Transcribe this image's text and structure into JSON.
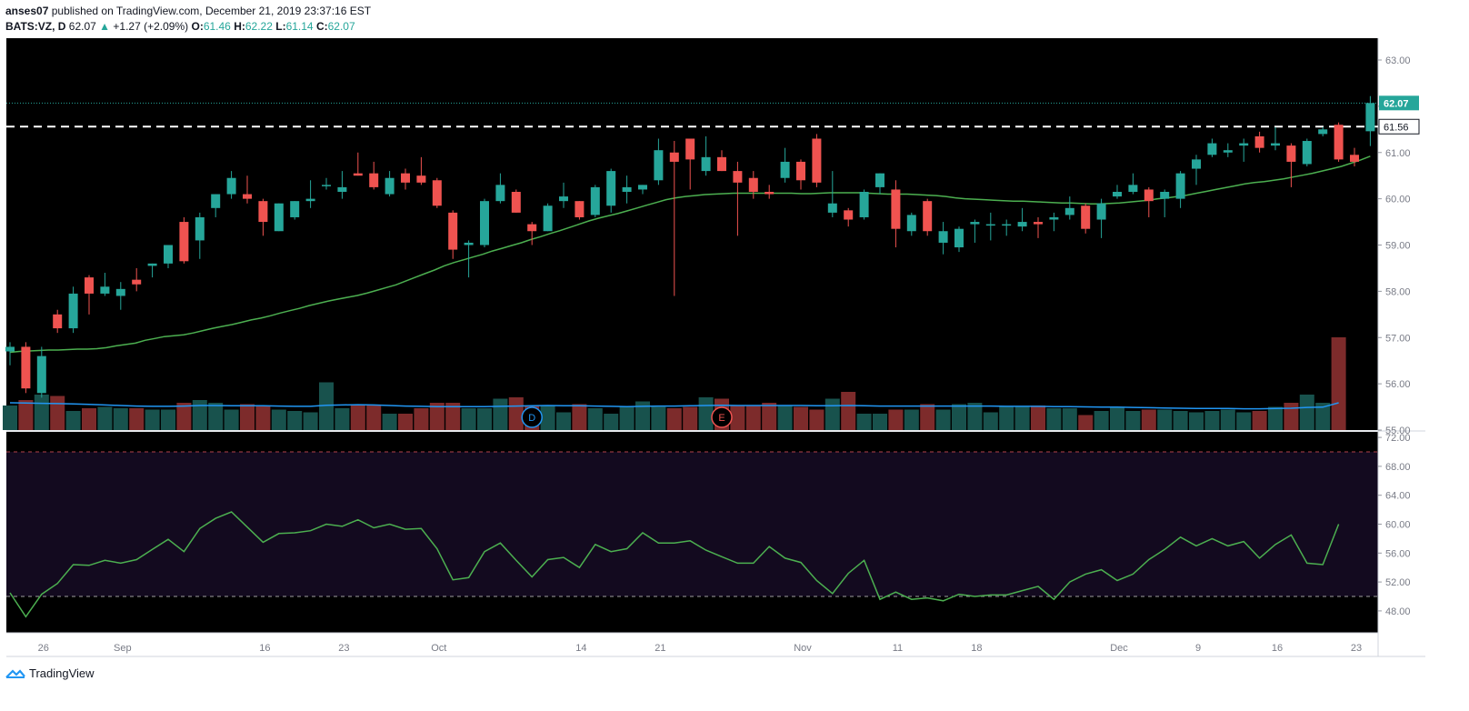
{
  "header": {
    "line1_author": "anses07",
    "line1_text": "published on TradingView.com, December 21, 2019 23:37:16 EST",
    "symbol": "BATS:VZ, D",
    "last": "62.07",
    "change": "+1.27 (+2.09%)",
    "o_label": "O:",
    "o_value": "61.46",
    "h_label": "H:",
    "h_value": "62.22",
    "l_label": "L:",
    "l_value": "61.14",
    "c_label": "C:",
    "c_value": "62.07"
  },
  "footer": {
    "brand": "TradingView"
  },
  "colors": {
    "up": "#26a69a",
    "down": "#ef5350",
    "ma": "#4caf50",
    "vol_ma": "#2196f3",
    "rsi_band": "#130a1f"
  },
  "chart_data": [
    {
      "type": "candlestick",
      "yaxis_ticks": [
        "63.00",
        "62.00",
        "61.00",
        "60.00",
        "59.00",
        "58.00",
        "57.00",
        "56.00",
        "55.00"
      ],
      "ylim": [
        55,
        63
      ],
      "price_labels": {
        "last": "62.07",
        "level": "61.56"
      },
      "x_ticks": [
        {
          "label": "26",
          "i": 2
        },
        {
          "label": "Sep",
          "i": 7
        },
        {
          "label": "16",
          "i": 16
        },
        {
          "label": "23",
          "i": 21
        },
        {
          "label": "Oct",
          "i": 27
        },
        {
          "label": "14",
          "i": 36
        },
        {
          "label": "21",
          "i": 41
        },
        {
          "label": "Nov",
          "i": 50
        },
        {
          "label": "11",
          "i": 56
        },
        {
          "label": "18",
          "i": 61
        },
        {
          "label": "Dec",
          "i": 70
        },
        {
          "label": "9",
          "i": 75
        },
        {
          "label": "16",
          "i": 80
        },
        {
          "label": "23",
          "i": 85
        }
      ],
      "events": [
        {
          "label": "D",
          "i": 33
        },
        {
          "label": "E",
          "i": 45
        }
      ],
      "candles": [
        {
          "o": 56.7,
          "h": 56.9,
          "l": 56.4,
          "c": 56.8
        },
        {
          "o": 56.8,
          "h": 56.9,
          "l": 55.8,
          "c": 55.9
        },
        {
          "o": 55.8,
          "h": 56.8,
          "l": 55.7,
          "c": 56.6
        },
        {
          "o": 57.5,
          "h": 57.6,
          "l": 57.1,
          "c": 57.2
        },
        {
          "o": 57.2,
          "h": 58.1,
          "l": 57.1,
          "c": 57.95
        },
        {
          "o": 58.3,
          "h": 58.35,
          "l": 57.5,
          "c": 57.95
        },
        {
          "o": 57.95,
          "h": 58.4,
          "l": 57.9,
          "c": 58.1
        },
        {
          "o": 57.9,
          "h": 58.2,
          "l": 57.6,
          "c": 58.05
        },
        {
          "o": 58.25,
          "h": 58.5,
          "l": 58.0,
          "c": 58.15
        },
        {
          "o": 58.55,
          "h": 58.6,
          "l": 58.3,
          "c": 58.6
        },
        {
          "o": 58.6,
          "h": 59.0,
          "l": 58.5,
          "c": 59.0
        },
        {
          "o": 59.5,
          "h": 59.6,
          "l": 58.6,
          "c": 58.65
        },
        {
          "o": 59.1,
          "h": 59.7,
          "l": 58.7,
          "c": 59.6
        },
        {
          "o": 59.8,
          "h": 60.1,
          "l": 59.6,
          "c": 60.1
        },
        {
          "o": 60.1,
          "h": 60.6,
          "l": 60.0,
          "c": 60.45
        },
        {
          "o": 60.1,
          "h": 60.5,
          "l": 59.9,
          "c": 60.0
        },
        {
          "o": 59.95,
          "h": 60.0,
          "l": 59.2,
          "c": 59.5
        },
        {
          "o": 59.3,
          "h": 59.9,
          "l": 59.3,
          "c": 59.9
        },
        {
          "o": 59.6,
          "h": 59.95,
          "l": 59.55,
          "c": 59.95
        },
        {
          "o": 59.95,
          "h": 60.4,
          "l": 59.8,
          "c": 60.0
        },
        {
          "o": 60.3,
          "h": 60.45,
          "l": 60.2,
          "c": 60.3
        },
        {
          "o": 60.15,
          "h": 60.6,
          "l": 60.0,
          "c": 60.25
        },
        {
          "o": 60.55,
          "h": 61.0,
          "l": 60.5,
          "c": 60.5
        },
        {
          "o": 60.55,
          "h": 60.8,
          "l": 60.2,
          "c": 60.25
        },
        {
          "o": 60.1,
          "h": 60.6,
          "l": 60.05,
          "c": 60.45
        },
        {
          "o": 60.55,
          "h": 60.65,
          "l": 60.2,
          "c": 60.35
        },
        {
          "o": 60.5,
          "h": 60.9,
          "l": 60.3,
          "c": 60.35
        },
        {
          "o": 60.4,
          "h": 60.45,
          "l": 59.8,
          "c": 59.85
        },
        {
          "o": 59.7,
          "h": 59.75,
          "l": 58.7,
          "c": 58.9
        },
        {
          "o": 59.0,
          "h": 59.1,
          "l": 58.3,
          "c": 59.05
        },
        {
          "o": 59.0,
          "h": 60.0,
          "l": 58.95,
          "c": 59.95
        },
        {
          "o": 59.95,
          "h": 60.55,
          "l": 59.9,
          "c": 60.3
        },
        {
          "o": 60.15,
          "h": 60.2,
          "l": 59.7,
          "c": 59.7
        },
        {
          "o": 59.45,
          "h": 59.5,
          "l": 59.0,
          "c": 59.3
        },
        {
          "o": 59.3,
          "h": 59.9,
          "l": 59.3,
          "c": 59.85
        },
        {
          "o": 59.95,
          "h": 60.35,
          "l": 59.8,
          "c": 60.05
        },
        {
          "o": 59.95,
          "h": 59.95,
          "l": 59.55,
          "c": 59.6
        },
        {
          "o": 59.65,
          "h": 60.3,
          "l": 59.6,
          "c": 60.25
        },
        {
          "o": 59.85,
          "h": 60.65,
          "l": 59.7,
          "c": 60.6
        },
        {
          "o": 60.15,
          "h": 60.5,
          "l": 59.9,
          "c": 60.25
        },
        {
          "o": 60.2,
          "h": 60.3,
          "l": 60.1,
          "c": 60.3
        },
        {
          "o": 60.4,
          "h": 61.3,
          "l": 60.3,
          "c": 61.05
        },
        {
          "o": 61.0,
          "h": 61.25,
          "l": 57.9,
          "c": 60.8
        },
        {
          "o": 61.3,
          "h": 61.3,
          "l": 60.2,
          "c": 60.85
        },
        {
          "o": 60.6,
          "h": 61.35,
          "l": 60.5,
          "c": 60.9
        },
        {
          "o": 60.9,
          "h": 61.05,
          "l": 60.6,
          "c": 60.6
        },
        {
          "o": 60.6,
          "h": 60.8,
          "l": 59.2,
          "c": 60.35
        },
        {
          "o": 60.45,
          "h": 60.6,
          "l": 60.0,
          "c": 60.15
        },
        {
          "o": 60.15,
          "h": 60.3,
          "l": 60.0,
          "c": 60.1
        },
        {
          "o": 60.45,
          "h": 61.1,
          "l": 60.35,
          "c": 60.8
        },
        {
          "o": 60.8,
          "h": 60.85,
          "l": 60.2,
          "c": 60.4
        },
        {
          "o": 61.3,
          "h": 61.4,
          "l": 60.25,
          "c": 60.35
        },
        {
          "o": 59.7,
          "h": 60.6,
          "l": 59.6,
          "c": 59.9
        },
        {
          "o": 59.75,
          "h": 59.8,
          "l": 59.4,
          "c": 59.55
        },
        {
          "o": 59.6,
          "h": 60.2,
          "l": 59.55,
          "c": 60.15
        },
        {
          "o": 60.25,
          "h": 60.55,
          "l": 60.1,
          "c": 60.55
        },
        {
          "o": 60.2,
          "h": 60.4,
          "l": 58.95,
          "c": 59.35
        },
        {
          "o": 59.3,
          "h": 59.7,
          "l": 59.2,
          "c": 59.65
        },
        {
          "o": 59.95,
          "h": 60.0,
          "l": 59.2,
          "c": 59.3
        },
        {
          "o": 59.05,
          "h": 59.5,
          "l": 58.8,
          "c": 59.3
        },
        {
          "o": 58.95,
          "h": 59.4,
          "l": 58.85,
          "c": 59.35
        },
        {
          "o": 59.45,
          "h": 59.55,
          "l": 59.05,
          "c": 59.5
        },
        {
          "o": 59.45,
          "h": 59.7,
          "l": 59.1,
          "c": 59.45
        },
        {
          "o": 59.45,
          "h": 59.55,
          "l": 59.2,
          "c": 59.45
        },
        {
          "o": 59.4,
          "h": 59.8,
          "l": 59.3,
          "c": 59.5
        },
        {
          "o": 59.5,
          "h": 59.6,
          "l": 59.15,
          "c": 59.45
        },
        {
          "o": 59.55,
          "h": 59.7,
          "l": 59.3,
          "c": 59.6
        },
        {
          "o": 59.65,
          "h": 60.05,
          "l": 59.55,
          "c": 59.8
        },
        {
          "o": 59.85,
          "h": 59.9,
          "l": 59.25,
          "c": 59.35
        },
        {
          "o": 59.55,
          "h": 60.0,
          "l": 59.15,
          "c": 59.9
        },
        {
          "o": 60.05,
          "h": 60.3,
          "l": 60.0,
          "c": 60.15
        },
        {
          "o": 60.15,
          "h": 60.55,
          "l": 60.1,
          "c": 60.3
        },
        {
          "o": 60.2,
          "h": 60.25,
          "l": 59.6,
          "c": 59.95
        },
        {
          "o": 60.0,
          "h": 60.2,
          "l": 59.6,
          "c": 60.15
        },
        {
          "o": 60.0,
          "h": 60.6,
          "l": 59.8,
          "c": 60.55
        },
        {
          "o": 60.65,
          "h": 60.95,
          "l": 60.3,
          "c": 60.85
        },
        {
          "o": 60.95,
          "h": 61.3,
          "l": 60.9,
          "c": 61.2
        },
        {
          "o": 61.0,
          "h": 61.2,
          "l": 60.9,
          "c": 61.05
        },
        {
          "o": 61.15,
          "h": 61.3,
          "l": 60.8,
          "c": 61.2
        },
        {
          "o": 61.35,
          "h": 61.45,
          "l": 61.0,
          "c": 61.1
        },
        {
          "o": 61.15,
          "h": 61.55,
          "l": 61.05,
          "c": 61.2
        },
        {
          "o": 61.15,
          "h": 61.2,
          "l": 60.25,
          "c": 60.8
        },
        {
          "o": 60.75,
          "h": 61.3,
          "l": 60.7,
          "c": 61.25
        },
        {
          "o": 61.4,
          "h": 61.55,
          "l": 61.35,
          "c": 61.5
        },
        {
          "o": 61.6,
          "h": 61.65,
          "l": 60.8,
          "c": 60.85
        },
        {
          "o": 60.95,
          "h": 61.1,
          "l": 60.7,
          "c": 60.8
        },
        {
          "o": 61.46,
          "h": 62.22,
          "l": 61.14,
          "c": 62.07
        }
      ],
      "ma": [
        56.68,
        56.7,
        56.71,
        56.72,
        56.73,
        56.73,
        56.74,
        56.75,
        56.75,
        56.76,
        56.78,
        56.82,
        56.85,
        56.88,
        56.94,
        56.98,
        57.02,
        57.04,
        57.06,
        57.1,
        57.15,
        57.2,
        57.24,
        57.28,
        57.33,
        57.38,
        57.42,
        57.47,
        57.53,
        57.58,
        57.63,
        57.69,
        57.74,
        57.79,
        57.83,
        57.87,
        57.91,
        57.96,
        58.02,
        58.08,
        58.14,
        58.22,
        58.3,
        58.38,
        58.46,
        58.55,
        58.62,
        58.68,
        58.74,
        58.8,
        58.87,
        58.93,
        58.99,
        59.05,
        59.12,
        59.18,
        59.25,
        59.31,
        59.38,
        59.45,
        59.52,
        59.58,
        59.63,
        59.68,
        59.74,
        59.8,
        59.86,
        59.92,
        59.98,
        60.02,
        60.05,
        60.07,
        60.09,
        60.1,
        60.11,
        60.12,
        60.12,
        60.12,
        60.12,
        60.12,
        60.12,
        60.12,
        60.11,
        60.11,
        60.12,
        60.13,
        60.13,
        60.13,
        60.13,
        60.12,
        60.11,
        60.1,
        60.1,
        60.1,
        60.09,
        60.08,
        60.07,
        60.05,
        60.02,
        60.0,
        59.99,
        59.98,
        59.97,
        59.96,
        59.95,
        59.95,
        59.94,
        59.93,
        59.92,
        59.91,
        59.91,
        59.9,
        59.89,
        59.89,
        59.9,
        59.91,
        59.93,
        59.95,
        59.97,
        60.0,
        60.02,
        60.05,
        60.08,
        60.12,
        60.16,
        60.2,
        60.24,
        60.28,
        60.32,
        60.35,
        60.37,
        60.4,
        60.43,
        60.47,
        60.51,
        60.55,
        60.6,
        60.65,
        60.7,
        60.77,
        60.84,
        60.92
      ],
      "volume": [
        0.9,
        1.1,
        1.3,
        1.25,
        0.7,
        0.8,
        0.85,
        0.8,
        0.8,
        0.75,
        0.75,
        1.0,
        1.1,
        1.0,
        0.75,
        0.95,
        0.9,
        0.75,
        0.7,
        0.65,
        1.75,
        0.8,
        0.95,
        0.9,
        0.6,
        0.6,
        0.8,
        1.0,
        1.0,
        0.8,
        0.8,
        1.15,
        1.2,
        0.9,
        0.9,
        0.65,
        0.95,
        0.8,
        0.6,
        0.85,
        1.05,
        0.85,
        0.8,
        0.85,
        1.2,
        1.15,
        0.9,
        0.9,
        1.0,
        0.9,
        0.85,
        0.75,
        1.15,
        1.4,
        0.6,
        0.6,
        0.75,
        0.75,
        0.95,
        0.75,
        0.95,
        1.0,
        0.65,
        0.85,
        0.85,
        0.9,
        0.8,
        0.8,
        0.55,
        0.7,
        0.85,
        0.7,
        0.75,
        0.75,
        0.7,
        0.65,
        0.7,
        0.75,
        0.65,
        0.7,
        0.85,
        1.0,
        1.3,
        1.0,
        3.4
      ],
      "volume_ma": [
        1.0,
        0.99,
        0.98,
        0.97,
        0.96,
        0.94,
        0.92,
        0.9,
        0.88,
        0.87,
        0.87,
        0.88,
        0.9,
        0.9,
        0.89,
        0.89,
        0.89,
        0.88,
        0.87,
        0.87,
        0.91,
        0.92,
        0.93,
        0.92,
        0.9,
        0.88,
        0.87,
        0.86,
        0.86,
        0.86,
        0.86,
        0.87,
        0.88,
        0.89,
        0.9,
        0.89,
        0.89,
        0.88,
        0.87,
        0.86,
        0.87,
        0.88,
        0.88,
        0.89,
        0.9,
        0.91,
        0.9,
        0.9,
        0.9,
        0.9,
        0.9,
        0.89,
        0.89,
        0.9,
        0.89,
        0.88,
        0.88,
        0.88,
        0.88,
        0.88,
        0.88,
        0.88,
        0.88,
        0.87,
        0.87,
        0.87,
        0.86,
        0.86,
        0.85,
        0.84,
        0.84,
        0.83,
        0.82,
        0.81,
        0.8,
        0.79,
        0.79,
        0.79,
        0.78,
        0.78,
        0.79,
        0.8,
        0.83,
        0.84,
        1.0
      ]
    },
    {
      "type": "line",
      "yaxis_ticks": [
        "72.00",
        "68.00",
        "64.00",
        "60.00",
        "56.00",
        "52.00",
        "48.00"
      ],
      "ylim": [
        45.5,
        72
      ],
      "bands": [
        70,
        50
      ],
      "values": [
        50.5,
        47.2,
        50.3,
        51.8,
        54.4,
        54.3,
        55.0,
        54.6,
        55.1,
        56.5,
        57.9,
        56.2,
        59.4,
        60.8,
        61.7,
        59.6,
        57.5,
        58.7,
        58.8,
        59.1,
        60.0,
        59.7,
        60.6,
        59.5,
        60.0,
        59.3,
        59.4,
        56.6,
        52.3,
        52.6,
        56.2,
        57.4,
        55.0,
        52.7,
        55.1,
        55.4,
        54.0,
        57.2,
        56.2,
        56.6,
        58.8,
        57.4,
        57.4,
        57.7,
        56.4,
        55.5,
        54.6,
        54.6,
        56.9,
        55.3,
        54.7,
        52.2,
        50.4,
        53.2,
        55.0,
        49.6,
        50.6,
        49.6,
        49.8,
        49.4,
        50.3,
        50.0,
        50.2,
        50.2,
        50.8,
        51.4,
        49.6,
        52.0,
        53.1,
        53.7,
        52.2,
        53.1,
        55.1,
        56.5,
        58.2,
        57.0,
        58.0,
        57.0,
        57.6,
        55.3,
        57.2,
        58.5,
        54.6,
        54.4,
        60.0
      ]
    }
  ]
}
